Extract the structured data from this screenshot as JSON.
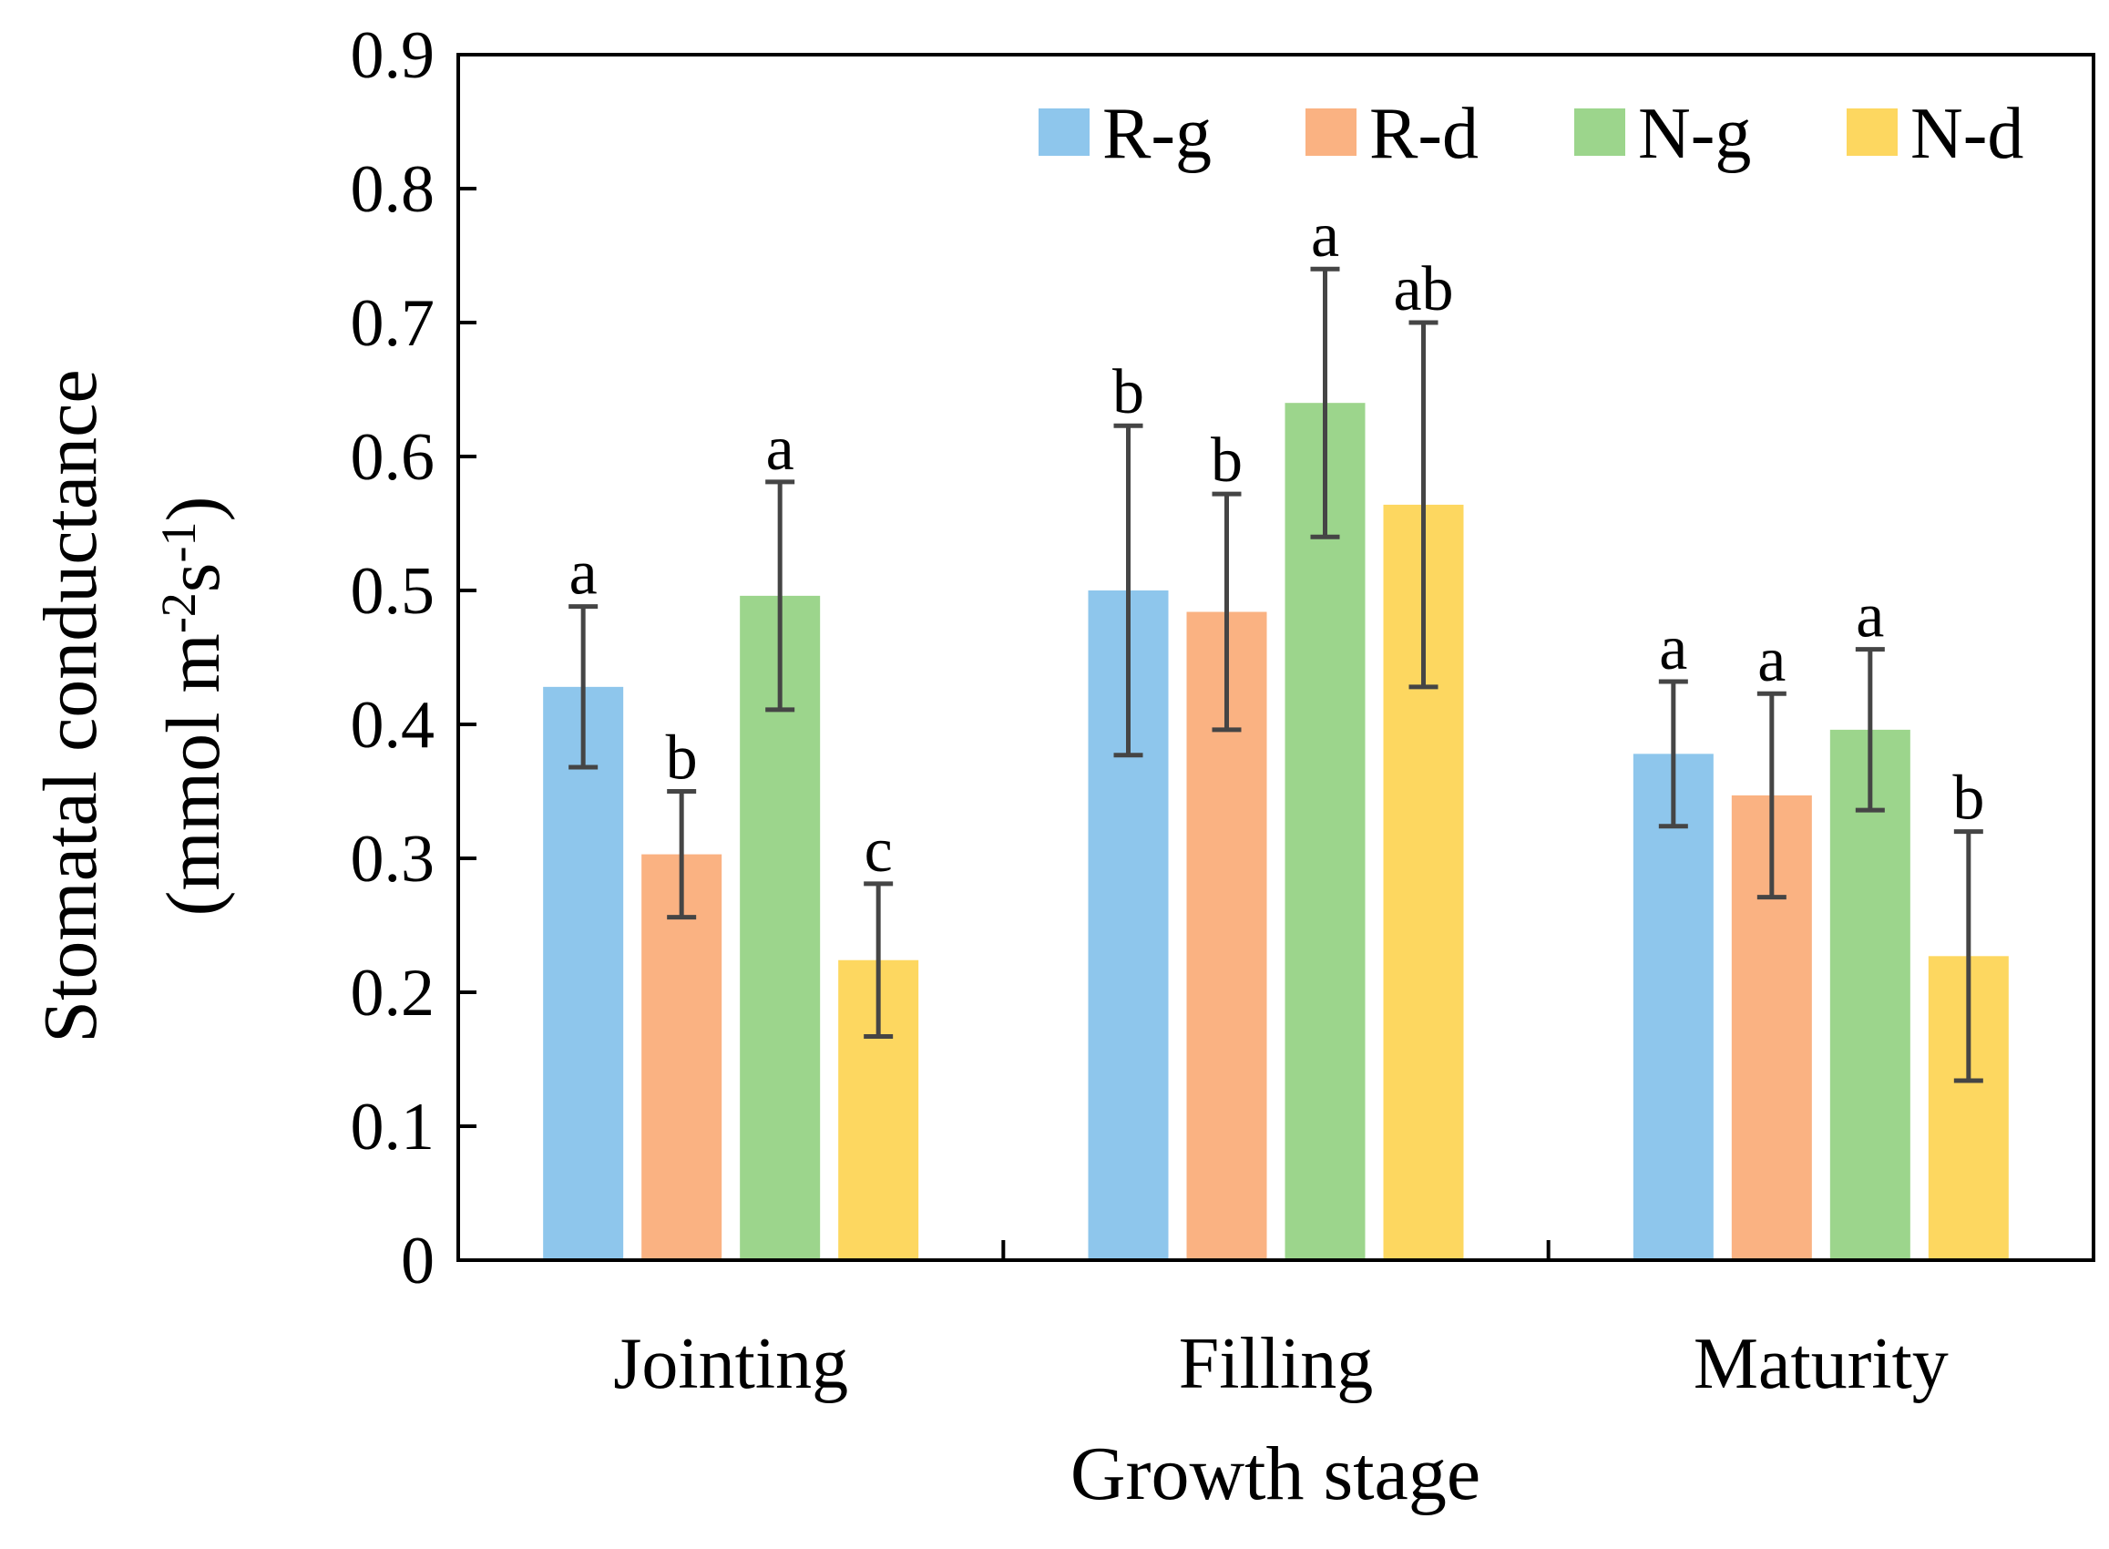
{
  "chart_data": {
    "type": "bar",
    "xlabel": "Growth stage",
    "ylabel_line1": "Stomatal conductance",
    "ylabel_line2": {
      "open": "(mmol m",
      "sup1": "-2",
      "mid": "s",
      "sup2": "-1",
      "close": ")"
    },
    "ylim": [
      0,
      0.9
    ],
    "yticks": [
      0,
      0.1,
      0.2,
      0.3,
      0.4,
      0.5,
      0.6,
      0.7,
      0.8,
      0.9
    ],
    "ytick_labels": [
      "0",
      "0.1",
      "0.2",
      "0.3",
      "0.4",
      "0.5",
      "0.6",
      "0.7",
      "0.8",
      "0.9"
    ],
    "categories": [
      "Jointing",
      "Filling",
      "Maturity"
    ],
    "legend_position": "top-right",
    "grid": false,
    "series": [
      {
        "name": "R-g",
        "color": "#8EC6EC",
        "values": [
          0.428,
          0.5,
          0.378
        ],
        "errors": [
          0.06,
          0.123,
          0.054
        ],
        "letters": [
          "a",
          "b",
          "a"
        ]
      },
      {
        "name": "R-d",
        "color": "#FAB282",
        "values": [
          0.303,
          0.484,
          0.347
        ],
        "errors": [
          0.047,
          0.088,
          0.076
        ],
        "letters": [
          "b",
          "b",
          "a"
        ]
      },
      {
        "name": "N-g",
        "color": "#9CD58C",
        "values": [
          0.496,
          0.64,
          0.396
        ],
        "errors": [
          0.085,
          0.1,
          0.06
        ],
        "letters": [
          "a",
          "a",
          "a"
        ]
      },
      {
        "name": "N-d",
        "color": "#FDD760",
        "values": [
          0.224,
          0.564,
          0.227
        ],
        "errors": [
          0.057,
          0.136,
          0.093
        ],
        "letters": [
          "c",
          "ab",
          "b"
        ]
      }
    ]
  }
}
